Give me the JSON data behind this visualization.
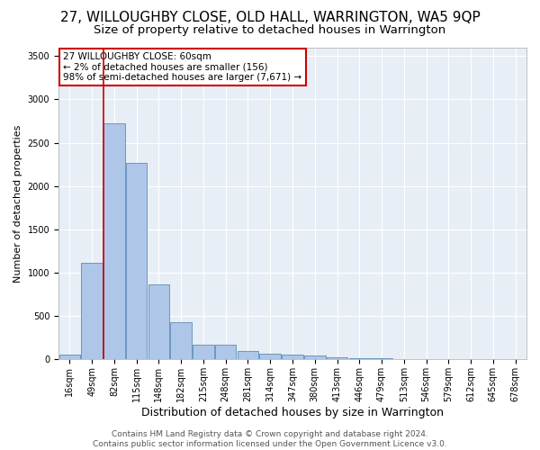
{
  "title": "27, WILLOUGHBY CLOSE, OLD HALL, WARRINGTON, WA5 9QP",
  "subtitle": "Size of property relative to detached houses in Warrington",
  "xlabel": "Distribution of detached houses by size in Warrington",
  "ylabel": "Number of detached properties",
  "categories": [
    "16sqm",
    "49sqm",
    "82sqm",
    "115sqm",
    "148sqm",
    "182sqm",
    "215sqm",
    "248sqm",
    "281sqm",
    "314sqm",
    "347sqm",
    "380sqm",
    "413sqm",
    "446sqm",
    "479sqm",
    "513sqm",
    "546sqm",
    "579sqm",
    "612sqm",
    "645sqm",
    "678sqm"
  ],
  "values": [
    55,
    1110,
    2720,
    2270,
    870,
    430,
    175,
    170,
    95,
    70,
    55,
    45,
    30,
    20,
    20,
    0,
    0,
    0,
    0,
    0,
    0
  ],
  "bar_color": "#aec6e8",
  "bar_edge_color": "#5b8db8",
  "highlight_color": "#cc0000",
  "annotation_box_text": "27 WILLOUGHBY CLOSE: 60sqm\n← 2% of detached houses are smaller (156)\n98% of semi-detached houses are larger (7,671) →",
  "annotation_box_color": "#cc0000",
  "ylim": [
    0,
    3600
  ],
  "yticks": [
    0,
    500,
    1000,
    1500,
    2000,
    2500,
    3000,
    3500
  ],
  "background_color": "#e8eef5",
  "grid_color": "#ffffff",
  "fig_background": "#ffffff",
  "footer_line1": "Contains HM Land Registry data © Crown copyright and database right 2024.",
  "footer_line2": "Contains public sector information licensed under the Open Government Licence v3.0.",
  "title_fontsize": 11,
  "subtitle_fontsize": 9.5,
  "xlabel_fontsize": 9,
  "ylabel_fontsize": 8,
  "tick_fontsize": 7,
  "footer_fontsize": 6.5,
  "annotation_fontsize": 7.5
}
